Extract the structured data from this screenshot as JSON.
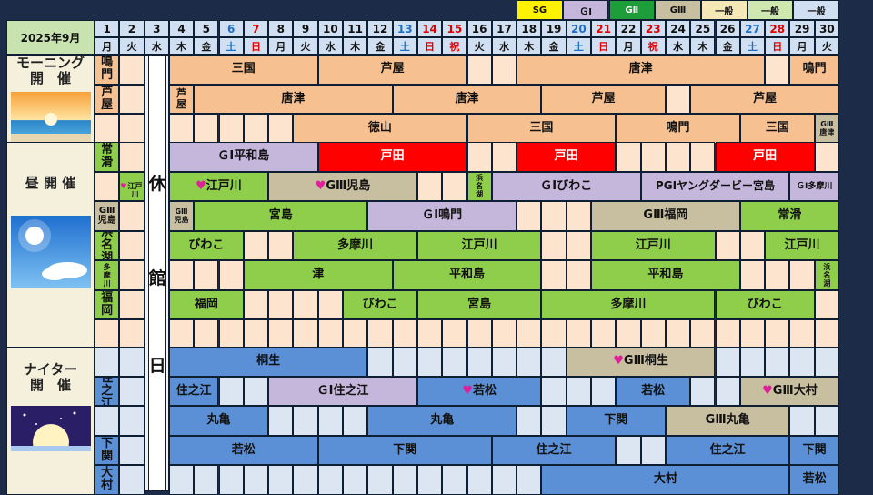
{
  "header": {
    "month_label": "2025年9月"
  },
  "legend": [
    {
      "label": "SG",
      "color": "#fff200"
    },
    {
      "label": "ＧⅠ",
      "color": "#c5b6dc"
    },
    {
      "label": "GⅡ",
      "color": "#1e9e3a"
    },
    {
      "label": "GⅢ",
      "color": "#c8bea0"
    },
    {
      "label": "一般",
      "color": "#f6e7b7"
    },
    {
      "label": "一般",
      "color": "#cfe8b0"
    },
    {
      "label": "一般",
      "color": "#d0dff2"
    }
  ],
  "days": [
    {
      "d": "1",
      "w": "月",
      "t": "n"
    },
    {
      "d": "2",
      "w": "火",
      "t": "n"
    },
    {
      "d": "3",
      "w": "水",
      "t": "n"
    },
    {
      "d": "4",
      "w": "木",
      "t": "n"
    },
    {
      "d": "5",
      "w": "金",
      "t": "n"
    },
    {
      "d": "6",
      "w": "土",
      "t": "sat"
    },
    {
      "d": "7",
      "w": "日",
      "t": "sun"
    },
    {
      "d": "8",
      "w": "月",
      "t": "n"
    },
    {
      "d": "9",
      "w": "火",
      "t": "n"
    },
    {
      "d": "10",
      "w": "水",
      "t": "n"
    },
    {
      "d": "11",
      "w": "木",
      "t": "n"
    },
    {
      "d": "12",
      "w": "金",
      "t": "n"
    },
    {
      "d": "13",
      "w": "土",
      "t": "sat"
    },
    {
      "d": "14",
      "w": "日",
      "t": "sun"
    },
    {
      "d": "15",
      "w": "祝",
      "t": "sun"
    },
    {
      "d": "16",
      "w": "火",
      "t": "n"
    },
    {
      "d": "17",
      "w": "水",
      "t": "n"
    },
    {
      "d": "18",
      "w": "木",
      "t": "n"
    },
    {
      "d": "19",
      "w": "金",
      "t": "n"
    },
    {
      "d": "20",
      "w": "土",
      "t": "sat"
    },
    {
      "d": "21",
      "w": "日",
      "t": "sun"
    },
    {
      "d": "22",
      "w": "月",
      "t": "n"
    },
    {
      "d": "23",
      "w": "祝",
      "t": "sun"
    },
    {
      "d": "24",
      "w": "水",
      "t": "n"
    },
    {
      "d": "25",
      "w": "木",
      "t": "n"
    },
    {
      "d": "26",
      "w": "金",
      "t": "n"
    },
    {
      "d": "27",
      "w": "土",
      "t": "sat"
    },
    {
      "d": "28",
      "w": "日",
      "t": "sun"
    },
    {
      "d": "29",
      "w": "月",
      "t": "n"
    },
    {
      "d": "30",
      "w": "火",
      "t": "n"
    }
  ],
  "closed_day": {
    "chars": [
      "休",
      "館",
      "日"
    ]
  },
  "sections": [
    {
      "id": "morning",
      "label": "モーニング\n開　催",
      "pic": "sunrise",
      "bg": "#fde4cf",
      "base": "#f6c090",
      "rows": [
        [
          {
            "s": 1,
            "e": 1,
            "t": "鳴門"
          },
          {
            "s": 4,
            "e": 9,
            "t": "三国"
          },
          {
            "s": 10,
            "e": 15,
            "t": "芦屋"
          },
          {
            "s": 18,
            "e": 27,
            "t": "唐津"
          },
          {
            "s": 29,
            "e": 30,
            "t": "鳴門"
          }
        ],
        [
          {
            "s": 1,
            "e": 1,
            "t": "芦屋"
          },
          {
            "s": 4,
            "e": 4,
            "t": "芦\n屋",
            "fs": 11
          },
          {
            "s": 5,
            "e": 12,
            "t": "唐津"
          },
          {
            "s": 13,
            "e": 18,
            "t": "唐津"
          },
          {
            "s": 19,
            "e": 23,
            "t": "芦屋"
          },
          {
            "s": 25,
            "e": 30,
            "t": "芦屋"
          }
        ],
        [
          {
            "s": 9,
            "e": 15,
            "t": "徳山"
          },
          {
            "s": 16,
            "e": 21,
            "t": "三国"
          },
          {
            "s": 22,
            "e": 26,
            "t": "鳴門"
          },
          {
            "s": 27,
            "e": 29,
            "t": "三国"
          },
          {
            "s": 30,
            "e": 30,
            "t": "GⅢ\n唐津",
            "fs": 8,
            "c": "#c8bea0"
          }
        ]
      ]
    },
    {
      "id": "day",
      "label": "昼 開 催",
      "pic": "sky",
      "bg": "#fde4cf",
      "base": "#8fce4a",
      "rows": [
        [
          {
            "s": 1,
            "e": 1,
            "t": "常滑"
          },
          {
            "s": 4,
            "e": 9,
            "t": "ＧⅠ平和島",
            "c": "#c5b6dc"
          },
          {
            "s": 10,
            "e": 15,
            "t": "戸田",
            "c": "#ff0000",
            "fc": "#ffffff"
          },
          {
            "s": 18,
            "e": 21,
            "t": "戸田",
            "c": "#ff0000",
            "fc": "#ffffff"
          },
          {
            "s": 26,
            "e": 29,
            "t": "戸田",
            "c": "#ff0000",
            "fc": "#ffffff"
          }
        ],
        [
          {
            "s": 2,
            "e": 2,
            "t": "♥\n江戸川",
            "fs": 8
          },
          {
            "s": 4,
            "e": 7,
            "t": "♥江戸川"
          },
          {
            "s": 8,
            "e": 13,
            "t": "♥GⅢ児島",
            "c": "#c8bea0"
          },
          {
            "s": 16,
            "e": 16,
            "t": "浜\n名\n湖",
            "fs": 8
          },
          {
            "s": 17,
            "e": 22,
            "t": "ＧⅠびわこ",
            "c": "#c5b6dc"
          },
          {
            "s": 23,
            "e": 28,
            "t": "PGⅠヤングダービー宮島",
            "c": "#c5b6dc",
            "fs": 12
          },
          {
            "s": 29,
            "e": 30,
            "t": "ＧⅠ多摩川",
            "c": "#c5b6dc",
            "fs": 9
          }
        ],
        [
          {
            "s": 1,
            "e": 1,
            "t": "GⅢ児島",
            "c": "#c8bea0",
            "fs": 10
          },
          {
            "s": 4,
            "e": 4,
            "t": "GⅢ\n児島",
            "c": "#c8bea0",
            "fs": 8
          },
          {
            "s": 5,
            "e": 11,
            "t": "宮島"
          },
          {
            "s": 12,
            "e": 17,
            "t": "ＧⅠ鳴門",
            "c": "#c5b6dc"
          },
          {
            "s": 21,
            "e": 26,
            "t": "GⅢ福岡",
            "c": "#c8bea0"
          },
          {
            "s": 27,
            "e": 30,
            "t": "常滑"
          }
        ],
        [
          {
            "s": 1,
            "e": 1,
            "t": "浜名湖"
          },
          {
            "s": 4,
            "e": 6,
            "t": "びわこ"
          },
          {
            "s": 9,
            "e": 13,
            "t": "多摩川"
          },
          {
            "s": 14,
            "e": 18,
            "t": "江戸川"
          },
          {
            "s": 21,
            "e": 25,
            "t": "江戸川"
          },
          {
            "s": 28,
            "e": 30,
            "t": "江戸川"
          }
        ],
        [
          {
            "s": 1,
            "e": 1,
            "t": "多\n摩\n川",
            "fs": 8
          },
          {
            "s": 7,
            "e": 12,
            "t": "津"
          },
          {
            "s": 13,
            "e": 18,
            "t": "平和島"
          },
          {
            "s": 21,
            "e": 26,
            "t": "平和島"
          },
          {
            "s": 30,
            "e": 30,
            "t": "浜\n名\n湖",
            "fs": 8
          }
        ],
        [
          {
            "s": 1,
            "e": 1,
            "t": "福岡"
          },
          {
            "s": 4,
            "e": 6,
            "t": "福岡"
          },
          {
            "s": 11,
            "e": 13,
            "t": "びわこ"
          },
          {
            "s": 14,
            "e": 18,
            "t": "宮島"
          },
          {
            "s": 19,
            "e": 25,
            "t": "多摩川"
          },
          {
            "s": 26,
            "e": 29,
            "t": "びわこ"
          }
        ],
        []
      ]
    },
    {
      "id": "night",
      "label": "ナイター\n開　催",
      "pic": "moon",
      "bg": "#dce6f2",
      "base": "#5b8fd6",
      "rows": [
        [
          {
            "s": 4,
            "e": 11,
            "t": "桐生"
          },
          {
            "s": 20,
            "e": 25,
            "t": "♥GⅢ桐生",
            "c": "#c8bea0"
          }
        ],
        [
          {
            "s": 1,
            "e": 1,
            "t": "住之江"
          },
          {
            "s": 4,
            "e": 5,
            "t": "住之江"
          },
          {
            "s": 8,
            "e": 13,
            "t": "ＧⅠ住之江",
            "c": "#c5b6dc"
          },
          {
            "s": 14,
            "e": 18,
            "t": "♥若松"
          },
          {
            "s": 22,
            "e": 24,
            "t": "若松"
          },
          {
            "s": 27,
            "e": 30,
            "t": "♥GⅢ大村",
            "c": "#c8bea0"
          }
        ],
        [
          {
            "s": 4,
            "e": 7,
            "t": "丸亀"
          },
          {
            "s": 12,
            "e": 17,
            "t": "丸亀"
          },
          {
            "s": 20,
            "e": 23,
            "t": "下関"
          },
          {
            "s": 24,
            "e": 28,
            "t": "GⅢ丸亀",
            "c": "#c8bea0"
          }
        ],
        [
          {
            "s": 1,
            "e": 1,
            "t": "下関"
          },
          {
            "s": 4,
            "e": 9,
            "t": "若松"
          },
          {
            "s": 10,
            "e": 16,
            "t": "下関"
          },
          {
            "s": 17,
            "e": 21,
            "t": "住之江"
          },
          {
            "s": 24,
            "e": 28,
            "t": "住之江"
          },
          {
            "s": 29,
            "e": 30,
            "t": "下関"
          }
        ],
        [
          {
            "s": 1,
            "e": 1,
            "t": "大村"
          },
          {
            "s": 19,
            "e": 28,
            "t": "大村"
          },
          {
            "s": 29,
            "e": 30,
            "t": "若松"
          }
        ]
      ]
    }
  ],
  "colors": {
    "header_bg": "#d0dff2",
    "corner_bg": "#c9e3b0",
    "sat": "#1f6fc4",
    "sun": "#e00000",
    "weekday": "#111111"
  }
}
